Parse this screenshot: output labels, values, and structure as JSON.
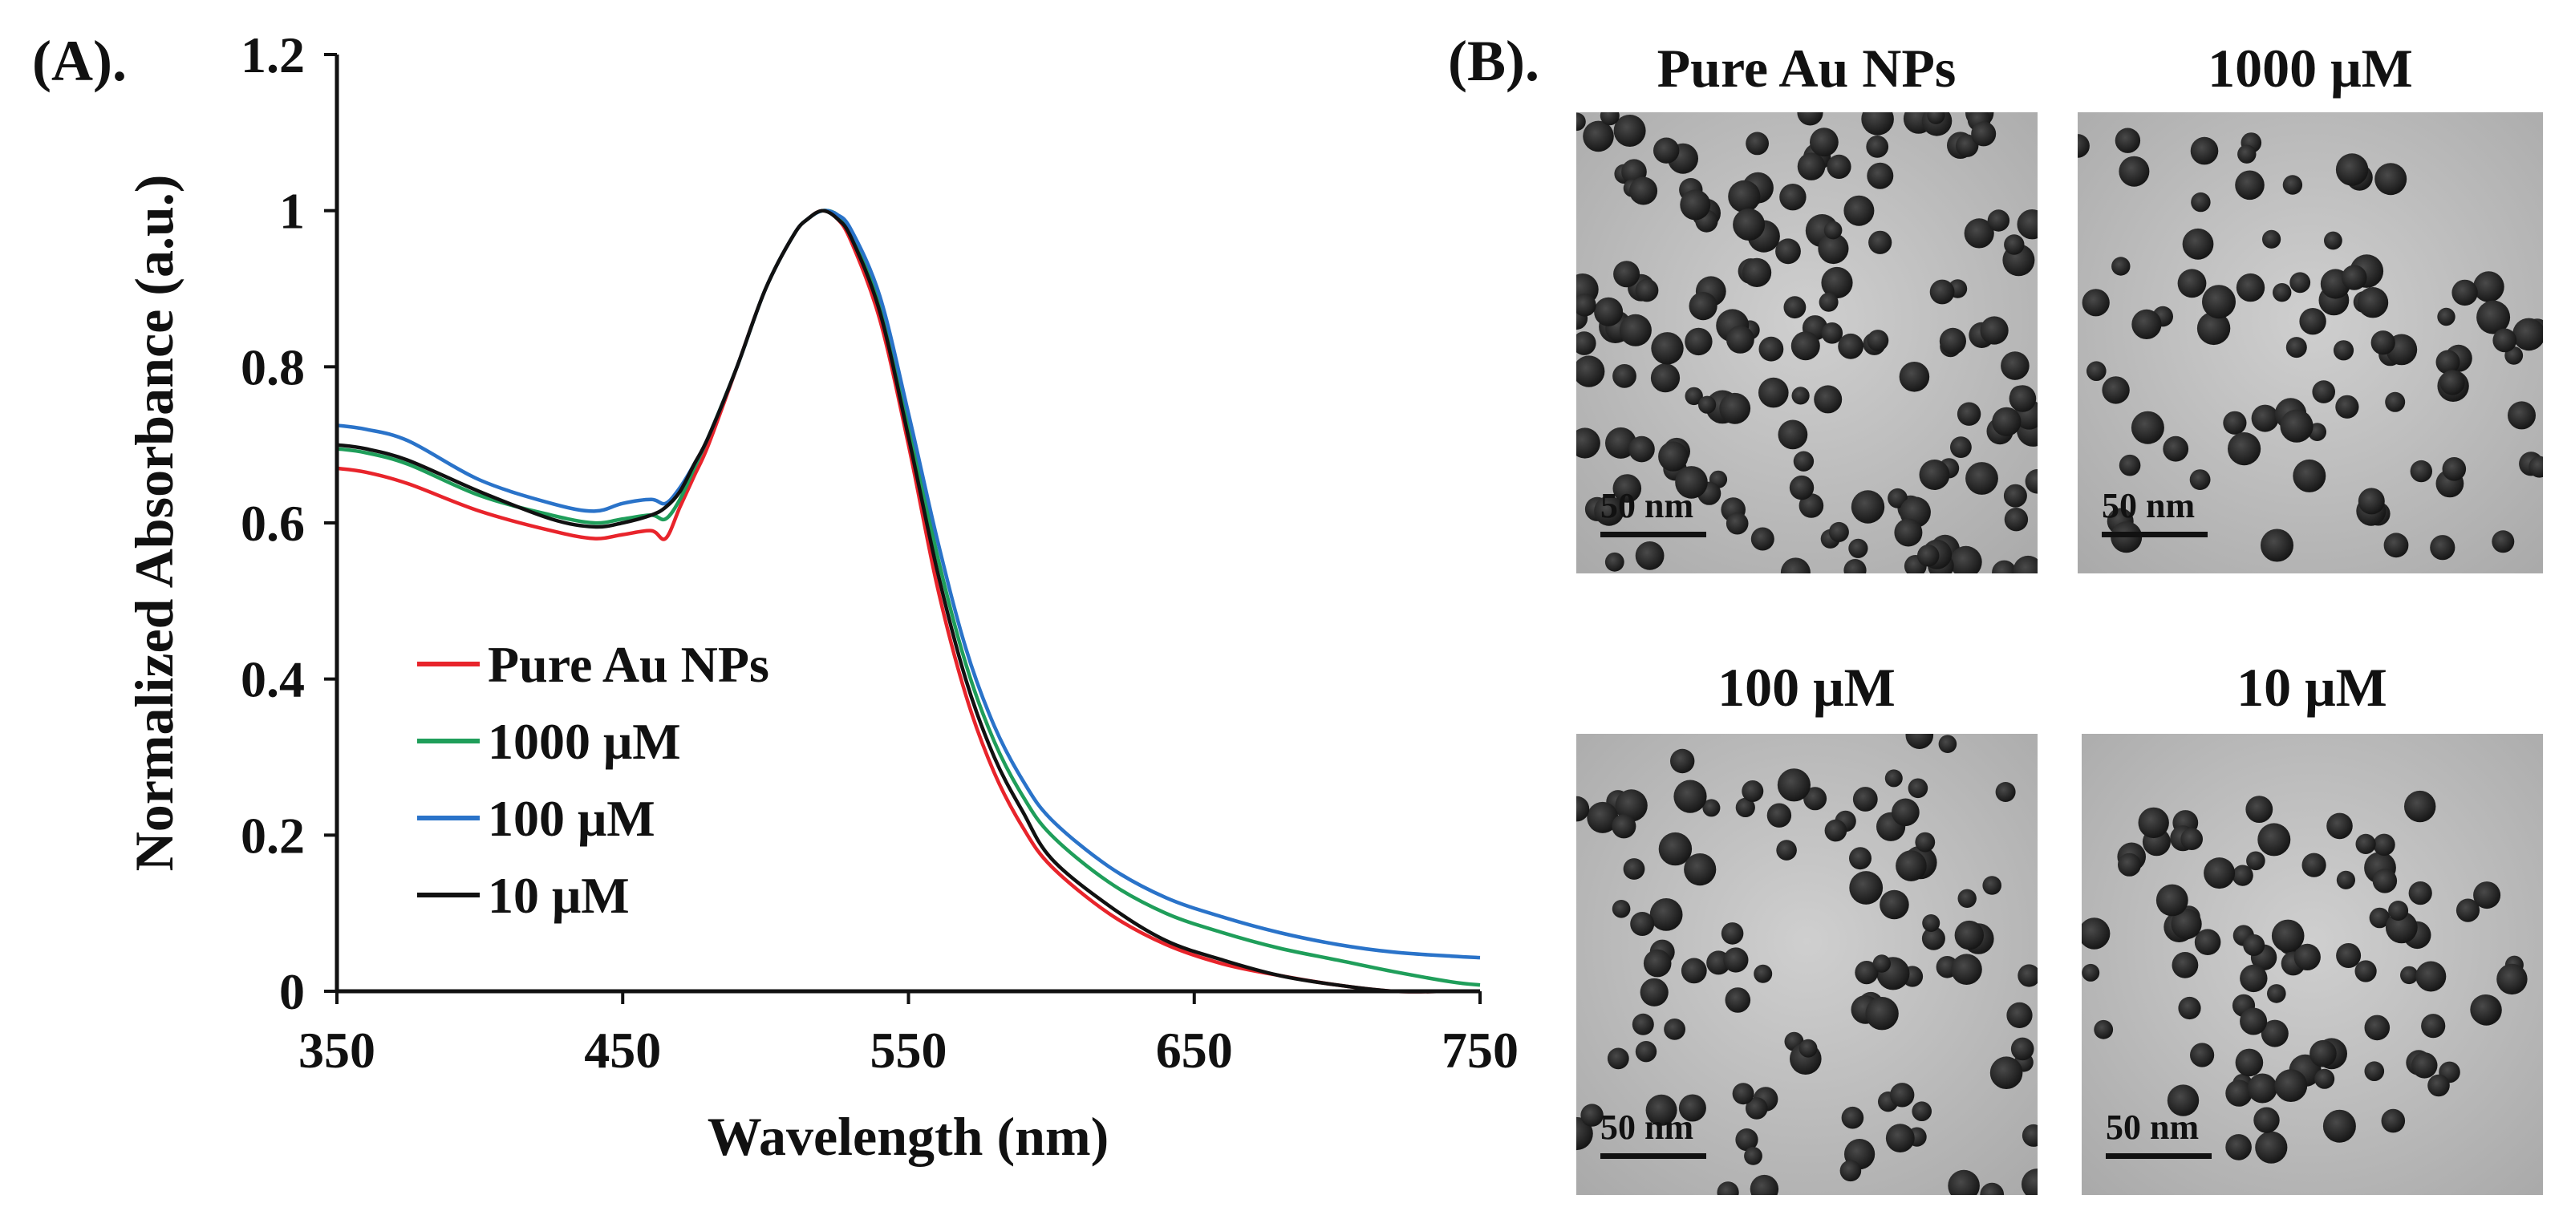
{
  "panel_a": {
    "label": "(A)."
  },
  "panel_b": {
    "label": "(B).",
    "images": [
      {
        "title": "Pure Au NPs",
        "scale_bar": "50 nm",
        "particle_seed": 11,
        "cluster": "dense"
      },
      {
        "title": "1000 μM",
        "scale_bar": "50 nm",
        "particle_seed": 23,
        "cluster": "sparse"
      },
      {
        "title": "100 μM",
        "scale_bar": "50 nm",
        "particle_seed": 37,
        "cluster": "medium"
      },
      {
        "title": "10 μM",
        "scale_bar": "50 nm",
        "particle_seed": 53,
        "cluster": "center"
      }
    ]
  },
  "chart_data": {
    "type": "line",
    "title": "",
    "xlabel": "Wavelength (nm)",
    "ylabel": "Normalized Absorbance (a.u.)",
    "xlim": [
      350,
      750
    ],
    "ylim": [
      0,
      1.2
    ],
    "xticks": [
      350,
      450,
      550,
      650,
      750
    ],
    "xtick_labels": [
      "350",
      "450",
      "550",
      "650",
      "750"
    ],
    "yticks": [
      0,
      0.2,
      0.4,
      0.6,
      0.8,
      1,
      1.2
    ],
    "ytick_labels": [
      "0",
      "0.2",
      "0.4",
      "0.6",
      "0.8",
      "1",
      "1.2"
    ],
    "legend_position": "center-left",
    "series": [
      {
        "name": "Pure Au NPs",
        "color": "#e8242b",
        "x": [
          350,
          360,
          375,
          400,
          425,
          440,
          450,
          460,
          465,
          470,
          475,
          480,
          490,
          500,
          510,
          515,
          520,
          525,
          530,
          540,
          550,
          560,
          570,
          580,
          590,
          600,
          620,
          640,
          660,
          680,
          700,
          720,
          740,
          750
        ],
        "y": [
          0.67,
          0.665,
          0.65,
          0.615,
          0.59,
          0.58,
          0.585,
          0.59,
          0.58,
          0.62,
          0.66,
          0.7,
          0.8,
          0.9,
          0.97,
          0.99,
          1.0,
          0.99,
          0.96,
          0.86,
          0.7,
          0.52,
          0.38,
          0.28,
          0.21,
          0.16,
          0.1,
          0.06,
          0.035,
          0.02,
          0.008,
          0.0,
          0.0,
          0.0
        ]
      },
      {
        "name": "1000 μM",
        "color": "#1f9e5a",
        "x": [
          350,
          360,
          375,
          400,
          425,
          440,
          450,
          460,
          465,
          470,
          475,
          480,
          490,
          500,
          510,
          515,
          520,
          525,
          530,
          540,
          550,
          560,
          570,
          580,
          590,
          600,
          620,
          640,
          660,
          680,
          700,
          720,
          740,
          750
        ],
        "y": [
          0.695,
          0.69,
          0.675,
          0.635,
          0.61,
          0.6,
          0.605,
          0.61,
          0.605,
          0.63,
          0.67,
          0.71,
          0.8,
          0.9,
          0.97,
          0.99,
          1.0,
          0.995,
          0.97,
          0.88,
          0.73,
          0.56,
          0.42,
          0.32,
          0.25,
          0.2,
          0.14,
          0.1,
          0.075,
          0.055,
          0.04,
          0.025,
          0.012,
          0.008
        ]
      },
      {
        "name": "100 μM",
        "color": "#2a73c9",
        "x": [
          350,
          360,
          375,
          400,
          425,
          440,
          450,
          460,
          465,
          470,
          475,
          480,
          490,
          500,
          510,
          515,
          520,
          525,
          530,
          540,
          550,
          560,
          570,
          580,
          590,
          600,
          620,
          640,
          660,
          680,
          700,
          720,
          740,
          750
        ],
        "y": [
          0.725,
          0.72,
          0.705,
          0.655,
          0.625,
          0.615,
          0.625,
          0.63,
          0.625,
          0.645,
          0.675,
          0.71,
          0.8,
          0.9,
          0.97,
          0.99,
          1.0,
          0.995,
          0.975,
          0.89,
          0.74,
          0.58,
          0.44,
          0.34,
          0.27,
          0.22,
          0.16,
          0.12,
          0.095,
          0.075,
          0.06,
          0.05,
          0.045,
          0.043
        ]
      },
      {
        "name": "10 μM",
        "color": "#111111",
        "x": [
          350,
          360,
          375,
          400,
          425,
          440,
          450,
          460,
          465,
          470,
          475,
          480,
          490,
          500,
          510,
          515,
          520,
          525,
          530,
          540,
          550,
          560,
          570,
          580,
          590,
          600,
          620,
          640,
          660,
          680,
          700,
          720,
          740,
          750
        ],
        "y": [
          0.7,
          0.695,
          0.68,
          0.64,
          0.605,
          0.595,
          0.6,
          0.61,
          0.62,
          0.64,
          0.675,
          0.71,
          0.8,
          0.9,
          0.97,
          0.99,
          1.0,
          0.99,
          0.965,
          0.87,
          0.71,
          0.54,
          0.4,
          0.3,
          0.23,
          0.17,
          0.11,
          0.065,
          0.04,
          0.02,
          0.008,
          0.0,
          0.0,
          0.0
        ]
      }
    ]
  }
}
